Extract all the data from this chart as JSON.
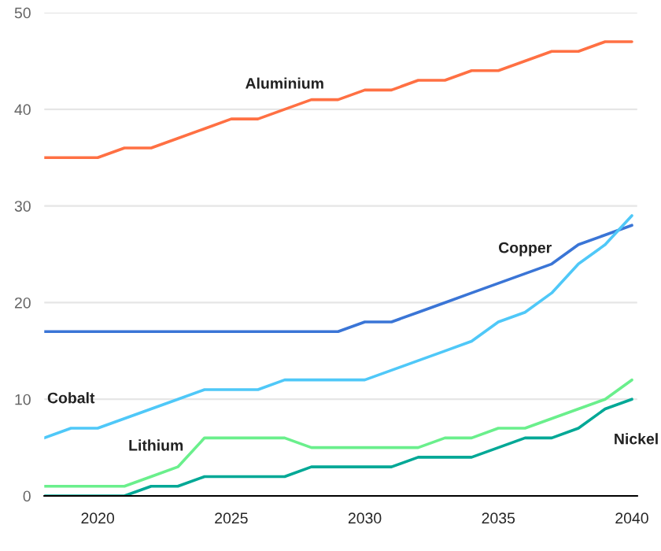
{
  "chart_data": {
    "type": "line",
    "x": [
      2018,
      2019,
      2020,
      2021,
      2022,
      2023,
      2024,
      2025,
      2026,
      2027,
      2028,
      2029,
      2030,
      2031,
      2032,
      2033,
      2034,
      2035,
      2036,
      2037,
      2038,
      2039,
      2040
    ],
    "series": [
      {
        "name": "Aluminium",
        "color": "#ff7043",
        "values": [
          35,
          35,
          35,
          36,
          36,
          37,
          38,
          39,
          39,
          40,
          41,
          41,
          42,
          42,
          43,
          43,
          44,
          44,
          45,
          46,
          46,
          47,
          47
        ]
      },
      {
        "name": "Copper",
        "color": "#3a75d6",
        "values": [
          17,
          17,
          17,
          17,
          17,
          17,
          17,
          17,
          17,
          17,
          17,
          17,
          18,
          18,
          19,
          20,
          21,
          22,
          23,
          24,
          26,
          27,
          28
        ]
      },
      {
        "name": "Cobalt",
        "color": "#4fc8f8",
        "values": [
          6,
          7,
          7,
          8,
          9,
          10,
          11,
          11,
          11,
          12,
          12,
          12,
          12,
          13,
          14,
          15,
          16,
          18,
          19,
          21,
          24,
          26,
          29
        ]
      },
      {
        "name": "Lithium",
        "color": "#6aef8c",
        "values": [
          1,
          1,
          1,
          1,
          2,
          3,
          6,
          6,
          6,
          6,
          5,
          5,
          5,
          5,
          5,
          6,
          6,
          7,
          7,
          8,
          9,
          10,
          12
        ]
      },
      {
        "name": "Nickel",
        "color": "#00a896",
        "values": [
          0,
          0,
          0,
          0,
          1,
          1,
          2,
          2,
          2,
          2,
          3,
          3,
          3,
          3,
          4,
          4,
          4,
          5,
          6,
          6,
          7,
          9,
          10
        ]
      }
    ],
    "xlim": [
      2018,
      2040.2
    ],
    "xticks": [
      2020,
      2025,
      2030,
      2035,
      2040
    ],
    "ylim": [
      0,
      50
    ],
    "yticks": [
      0,
      10,
      20,
      30,
      40,
      50
    ],
    "grid": "y",
    "legend": false,
    "marker": "none",
    "line_style": "solid"
  }
}
